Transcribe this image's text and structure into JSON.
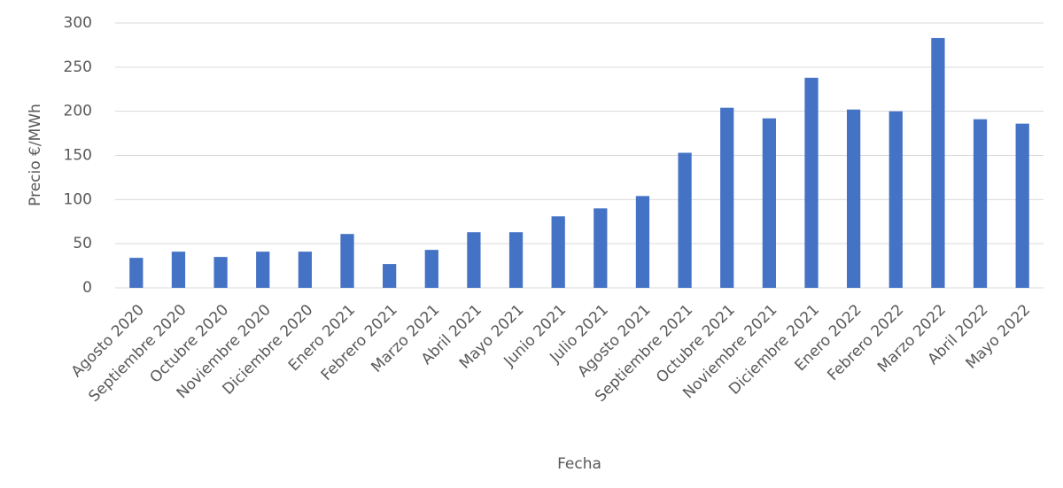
{
  "chart_data": {
    "type": "bar",
    "x_label": "Fecha",
    "y_label": "Precio €/MWh",
    "categories": [
      "Agosto 2020",
      "Septiembre 2020",
      "Octubre 2020",
      "Noviembre 2020",
      "Diciembre 2020",
      "Enero 2021",
      "Febrero 2021",
      "Marzo 2021",
      "Abril 2021",
      "Mayo 2021",
      "Junio 2021",
      "Julio 2021",
      "Agosto 2021",
      "Septiembre 2021",
      "Octubre 2021",
      "Noviembre 2021",
      "Diciembre 2021",
      "Enero 2022",
      "Febrero 2022",
      "Marzo 2022",
      "Abril 2022",
      "Mayo 2022"
    ],
    "values": [
      34,
      41,
      35,
      41,
      41,
      61,
      27,
      43,
      63,
      63,
      81,
      90,
      104,
      153,
      204,
      192,
      238,
      202,
      200,
      283,
      191,
      186
    ],
    "color": "#4472c4",
    "ylim": [
      0,
      300
    ],
    "yticks": [
      0,
      50,
      100,
      150,
      200,
      250,
      300
    ],
    "grid": true
  }
}
